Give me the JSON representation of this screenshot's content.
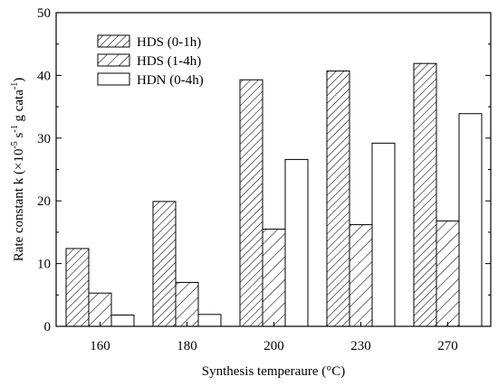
{
  "chart_data": {
    "type": "bar",
    "title": "",
    "categories": [
      "160",
      "180",
      "200",
      "230",
      "270"
    ],
    "series": [
      {
        "name": "HDS (0-1h)",
        "values": [
          12.4,
          19.9,
          39.3,
          40.7,
          41.9
        ],
        "pattern": "dense-hatch"
      },
      {
        "name": "HDS (1-4h)",
        "values": [
          5.3,
          7.0,
          15.5,
          16.2,
          16.8
        ],
        "pattern": "sparse-hatch"
      },
      {
        "name": "HDN (0-4h)",
        "values": [
          1.8,
          1.9,
          26.6,
          29.2,
          33.9
        ],
        "pattern": "none"
      }
    ],
    "xlabel": "Synthesis temperaure (°C)",
    "ylabel": {
      "main": "Rate constant k (×10",
      "exp1": "-5",
      "mid1": " s",
      "exp2": "-1",
      "mid2": " g cata",
      "exp3": "-1",
      "end": ")"
    },
    "ylim": [
      0,
      50
    ],
    "yticks": [
      0,
      10,
      20,
      30,
      40,
      50
    ],
    "grid": false,
    "legend_position": "top-left",
    "colors": {
      "edge": "#000000",
      "fill": "#ffffff"
    }
  }
}
